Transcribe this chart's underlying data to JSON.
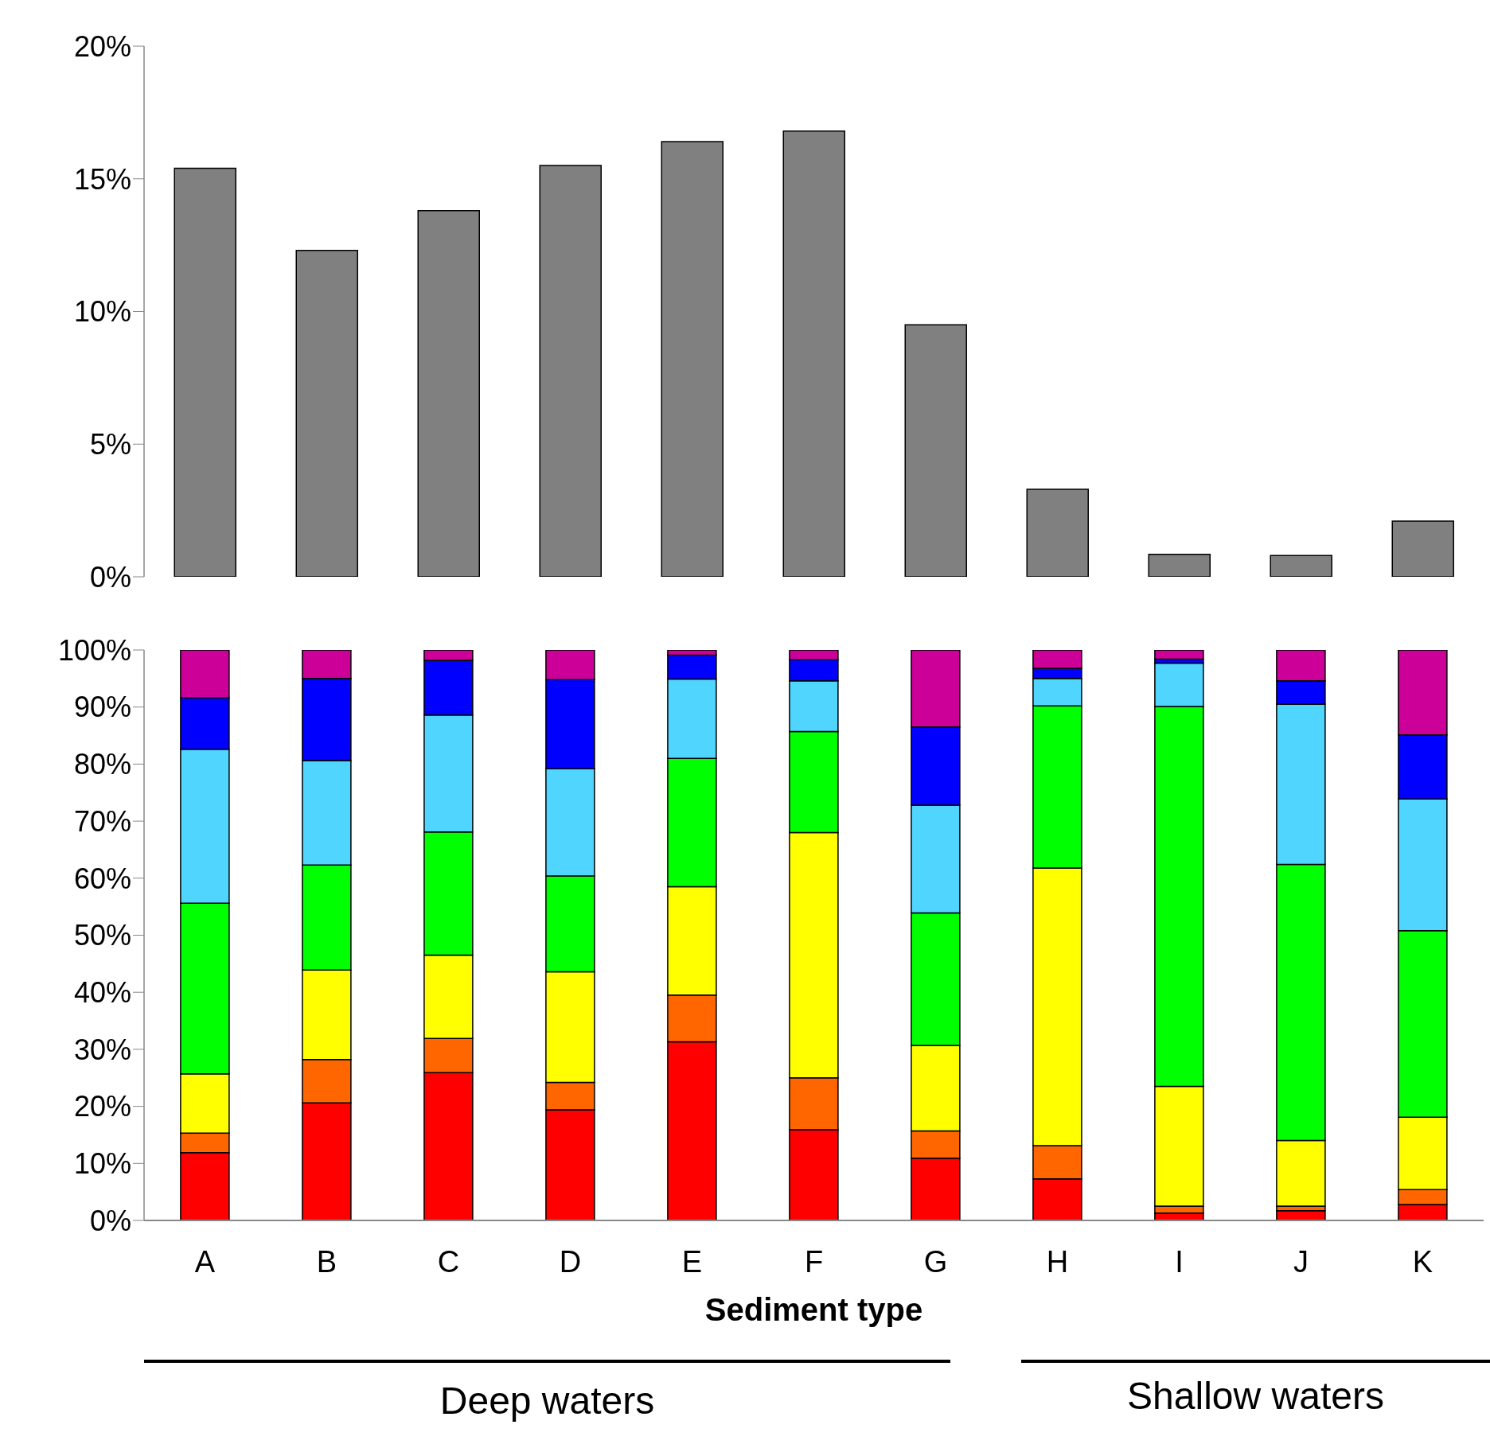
{
  "chart_data": [
    {
      "type": "bar",
      "categories": [
        null,
        null,
        null,
        null,
        null,
        null,
        null,
        null,
        null,
        null,
        null
      ],
      "values": [
        15.4,
        12.3,
        13.8,
        15.5,
        16.4,
        16.8,
        9.5,
        3.3,
        0.85,
        0.8,
        2.1
      ],
      "color": "#808080",
      "ylim": [
        0,
        20
      ],
      "yticks": [
        {
          "value": 0,
          "label": "0%"
        },
        {
          "value": 5,
          "label": "5%"
        },
        {
          "value": 10,
          "label": "10%"
        },
        {
          "value": 15,
          "label": "15%"
        },
        {
          "value": 20,
          "label": "20%"
        }
      ],
      "grid": false
    },
    {
      "type": "bar",
      "stacked": true,
      "xlabel": "Sediment type",
      "categories": [
        "A",
        "B",
        "C",
        "D",
        "E",
        "F",
        "G",
        "H",
        "I",
        "J",
        "K"
      ],
      "series": [
        {
          "color": "#ff0000",
          "values": [
            11.9,
            20.6,
            25.9,
            19.4,
            31.3,
            15.9,
            10.9,
            7.3,
            1.3,
            1.7,
            2.8
          ]
        },
        {
          "color": "#ff6600",
          "values": [
            3.4,
            7.6,
            6.0,
            4.8,
            8.2,
            9.1,
            4.8,
            5.8,
            1.2,
            0.8,
            2.6
          ]
        },
        {
          "color": "#ffff00",
          "values": [
            10.4,
            15.7,
            14.6,
            19.4,
            19.0,
            43.0,
            15.0,
            48.7,
            21.0,
            11.5,
            12.7
          ]
        },
        {
          "color": "#00ff00",
          "values": [
            29.9,
            18.4,
            21.6,
            16.8,
            22.5,
            17.7,
            23.2,
            28.4,
            66.6,
            48.4,
            32.7
          ]
        },
        {
          "color": "#50d5ff",
          "values": [
            27.0,
            18.3,
            20.5,
            18.8,
            13.9,
            8.9,
            18.9,
            4.8,
            7.6,
            28.1,
            23.1
          ]
        },
        {
          "color": "#0000ff",
          "values": [
            9.0,
            14.4,
            9.6,
            15.6,
            4.2,
            3.7,
            13.7,
            1.8,
            0.7,
            4.1,
            11.2
          ]
        },
        {
          "color": "#cc0099",
          "values": [
            8.4,
            5.0,
            1.8,
            5.2,
            0.9,
            1.7,
            13.5,
            3.2,
            1.6,
            5.4,
            14.9
          ]
        }
      ],
      "ylim": [
        0,
        100
      ],
      "yticks": [
        {
          "value": 0,
          "label": "0%"
        },
        {
          "value": 10,
          "label": "10%"
        },
        {
          "value": 20,
          "label": "20%"
        },
        {
          "value": 30,
          "label": "30%"
        },
        {
          "value": 40,
          "label": "40%"
        },
        {
          "value": 50,
          "label": "50%"
        },
        {
          "value": 60,
          "label": "60%"
        },
        {
          "value": 70,
          "label": "70%"
        },
        {
          "value": 80,
          "label": "80%"
        },
        {
          "value": 90,
          "label": "90%"
        },
        {
          "value": 100,
          "label": "100%"
        }
      ],
      "grid": false,
      "annotations": [
        "Deep waters",
        "Shallow waters"
      ]
    }
  ]
}
